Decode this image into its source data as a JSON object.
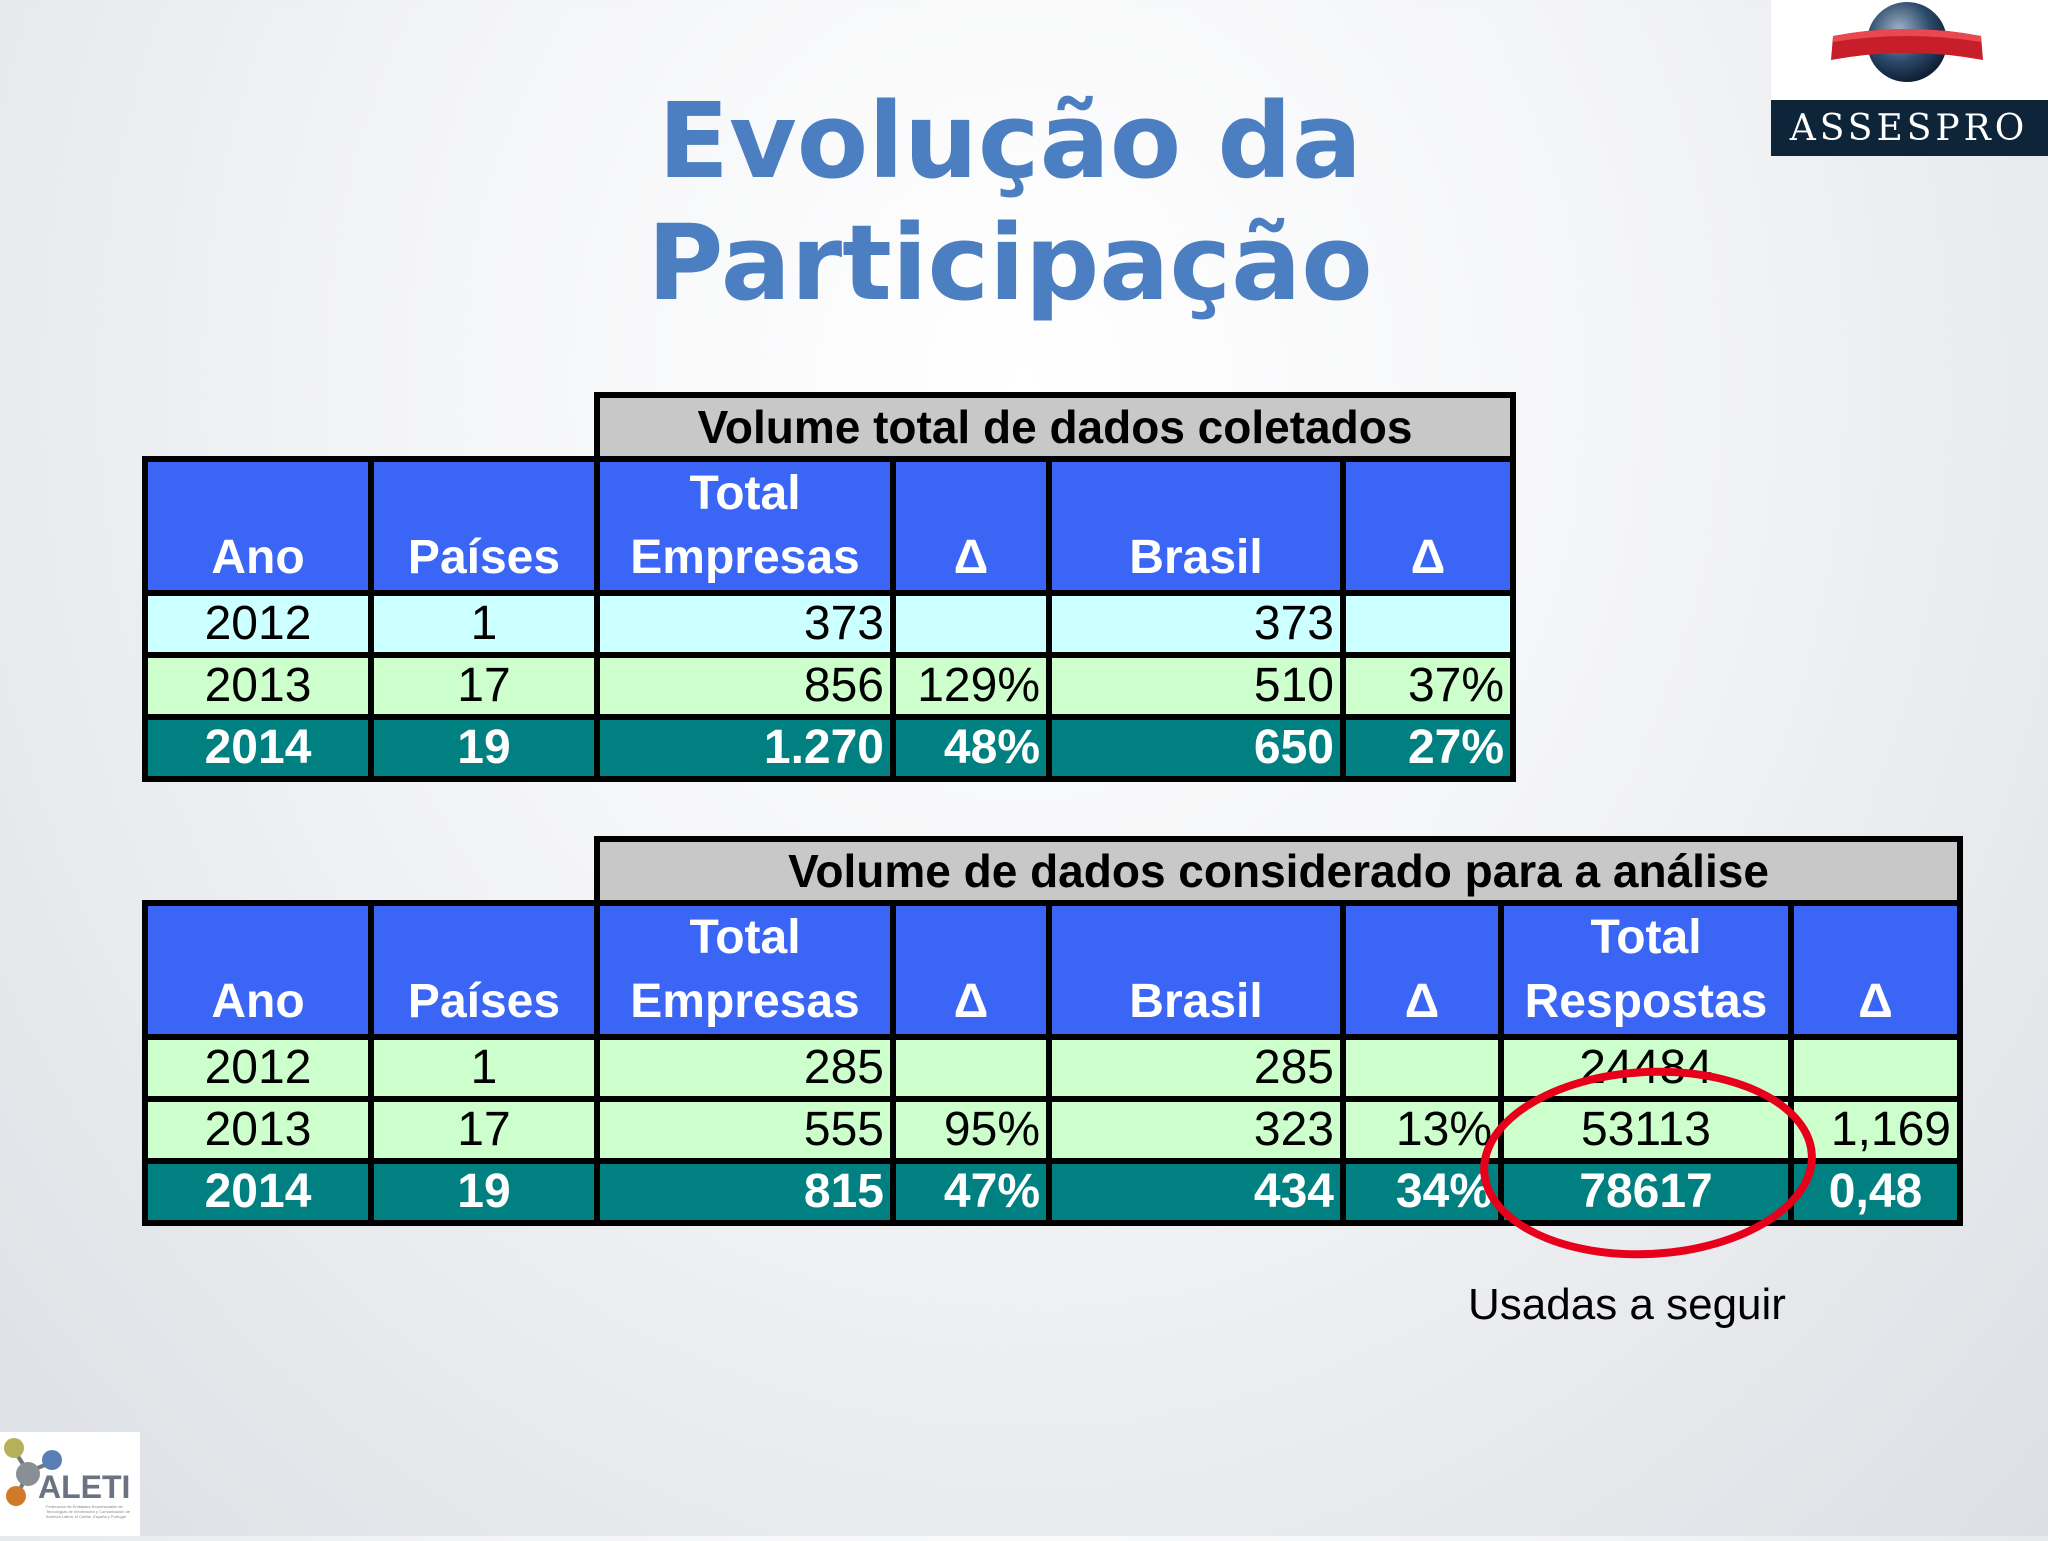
{
  "title": "Evolução da Participação",
  "logos": {
    "assespro": "ASSESPRO",
    "aleti": "ALETI",
    "aleti_caption": "Federación de Entidades Empresariales de Tecnologías de Información y Comunicación de América Latina, el Caribe, España y Portugal"
  },
  "table1": {
    "caption": "Volume total de dados coletados",
    "headers": [
      "Ano",
      "Países",
      "Total Empresas",
      "Δ",
      "Brasil",
      "Δ"
    ],
    "rows": [
      [
        "2012",
        "1",
        "373",
        "",
        "373",
        ""
      ],
      [
        "2013",
        "17",
        "856",
        "129%",
        "510",
        "37%"
      ],
      [
        "2014",
        "19",
        "1.270",
        "48%",
        "650",
        "27%"
      ]
    ]
  },
  "table2": {
    "caption": "Volume de dados considerado para a análise",
    "headers": [
      "Ano",
      "Países",
      "Total Empresas",
      "Δ",
      "Brasil",
      "Δ",
      "Total Respostas",
      "Δ"
    ],
    "rows": [
      [
        "2012",
        "1",
        "285",
        "",
        "285",
        "",
        "24484",
        ""
      ],
      [
        "2013",
        "17",
        "555",
        "95%",
        "323",
        "13%",
        "53113",
        "1,169"
      ],
      [
        "2014",
        "19",
        "815",
        "47%",
        "434",
        "34%",
        "78617",
        "0,48"
      ]
    ]
  },
  "annotation": {
    "note": "Usadas a seguir",
    "highlight_color": "#e8001a"
  }
}
